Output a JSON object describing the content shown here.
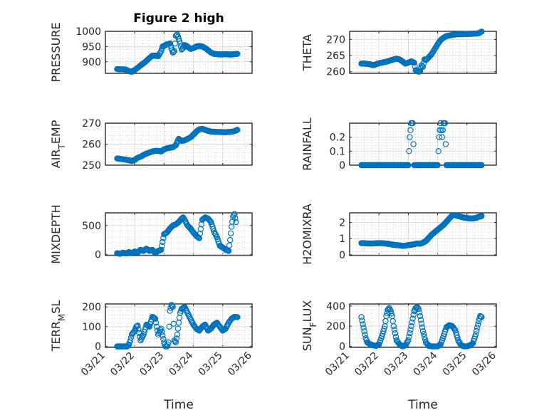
{
  "figure": {
    "title": "Figure 2 high",
    "xlabel": "Time"
  },
  "chart_data": [
    {
      "type": "scatter",
      "panel": "top-left",
      "title": "Figure 2 high",
      "ylabel": "PRESSURE",
      "ylabel_sub": "",
      "xlabel": "",
      "xlim": [
        0,
        5
      ],
      "x_ticks": [
        "03/21",
        "03/22",
        "03/23",
        "03/24",
        "03/25",
        "03/26"
      ],
      "x_tick_labels_shown": false,
      "ylim": [
        862,
        1000
      ],
      "y_ticks": [
        900,
        950,
        1000
      ],
      "series": [
        {
          "x": [
            0.4,
            0.5,
            0.6,
            0.7,
            0.75,
            0.8,
            0.9,
            1.0,
            1.1,
            1.2,
            1.3,
            1.4,
            1.5,
            1.6,
            1.7,
            1.8,
            1.9,
            1.95,
            2.0,
            2.05,
            2.1,
            2.15,
            2.2,
            2.25,
            2.3,
            2.35,
            2.4,
            2.45,
            2.5,
            2.55,
            2.6,
            2.65,
            2.7,
            2.8,
            2.9,
            3.0,
            3.1,
            3.2,
            3.3,
            3.4,
            3.5,
            3.6,
            3.7,
            3.8,
            3.9,
            4.0,
            4.1,
            4.2,
            4.3,
            4.4,
            4.5
          ],
          "y": [
            876,
            875,
            875,
            874,
            872,
            869,
            867,
            873,
            880,
            888,
            895,
            903,
            912,
            920,
            920,
            918,
            935,
            950,
            952,
            955,
            957,
            958,
            960,
            945,
            930,
            935,
            985,
            990,
            975,
            960,
            940,
            945,
            955,
            950,
            942,
            945,
            950,
            952,
            950,
            945,
            938,
            930,
            926,
            925,
            924,
            924,
            925,
            924,
            924,
            925,
            926
          ]
        }
      ]
    },
    {
      "type": "scatter",
      "panel": "top-right",
      "ylabel": "THETA",
      "ylabel_sub": "",
      "xlabel": "",
      "xlim": [
        0,
        5
      ],
      "x_ticks": [
        "03/21",
        "03/22",
        "03/23",
        "03/24",
        "03/25",
        "03/26"
      ],
      "x_tick_labels_shown": false,
      "ylim": [
        259.5,
        272.5
      ],
      "y_ticks": [
        260,
        265,
        270
      ],
      "series": [
        {
          "x": [
            0.4,
            0.5,
            0.6,
            0.7,
            0.8,
            0.9,
            1.0,
            1.1,
            1.2,
            1.3,
            1.4,
            1.5,
            1.6,
            1.7,
            1.8,
            1.9,
            2.0,
            2.1,
            2.2,
            2.25,
            2.3,
            2.35,
            2.4,
            2.45,
            2.5,
            2.55,
            2.6,
            2.65,
            2.7,
            2.8,
            2.9,
            3.0,
            3.1,
            3.2,
            3.3,
            3.4,
            3.5,
            3.6,
            3.7,
            3.8,
            3.9,
            4.0,
            4.1,
            4.2,
            4.3,
            4.4,
            4.5
          ],
          "y": [
            262.5,
            262.5,
            262.4,
            262.3,
            262.0,
            262.3,
            262.6,
            262.8,
            263.0,
            263.2,
            263.5,
            263.8,
            264.0,
            263.8,
            263.2,
            262.5,
            262.8,
            263.2,
            262.8,
            260.5,
            260.2,
            260.0,
            260.1,
            262.0,
            261.5,
            263.8,
            263.6,
            264.0,
            264.5,
            265.5,
            267.0,
            268.5,
            269.8,
            270.5,
            271.0,
            271.2,
            271.4,
            271.5,
            271.6,
            271.6,
            271.6,
            271.7,
            271.7,
            271.8,
            271.8,
            271.9,
            272.4
          ]
        }
      ]
    },
    {
      "type": "scatter",
      "panel": "second-left",
      "ylabel": "AIR",
      "ylabel_sub": "T",
      "ylabel_rest": "EMP",
      "xlabel": "",
      "xlim": [
        0,
        5
      ],
      "x_ticks": [
        "03/21",
        "03/22",
        "03/23",
        "03/24",
        "03/25",
        "03/26"
      ],
      "x_tick_labels_shown": false,
      "ylim": [
        250,
        270
      ],
      "y_ticks": [
        250,
        260,
        270
      ],
      "series": [
        {
          "x": [
            0.4,
            0.5,
            0.6,
            0.7,
            0.8,
            0.9,
            1.0,
            1.1,
            1.2,
            1.3,
            1.4,
            1.5,
            1.6,
            1.7,
            1.8,
            1.9,
            2.0,
            2.1,
            2.2,
            2.3,
            2.4,
            2.5,
            2.6,
            2.7,
            2.8,
            2.9,
            3.0,
            3.1,
            3.2,
            3.3,
            3.4,
            3.5,
            3.6,
            3.7,
            3.8,
            3.9,
            4.0,
            4.1,
            4.2,
            4.3,
            4.4,
            4.5
          ],
          "y": [
            253.2,
            253.0,
            252.8,
            252.6,
            252.3,
            252.0,
            252.5,
            253.5,
            254.0,
            254.8,
            255.5,
            256.0,
            256.5,
            256.8,
            256.8,
            256.5,
            257.5,
            258.0,
            258.3,
            258.5,
            259.5,
            262.5,
            261.5,
            261.8,
            262.5,
            263.2,
            264.5,
            266.0,
            267.0,
            267.3,
            266.8,
            266.3,
            266.0,
            265.9,
            265.8,
            265.8,
            265.7,
            265.7,
            265.8,
            265.9,
            266.2,
            266.8
          ]
        }
      ]
    },
    {
      "type": "scatter",
      "panel": "second-right",
      "ylabel": "RAINFALL",
      "ylabel_sub": "",
      "xlabel": "",
      "xlim": [
        0,
        5
      ],
      "x_ticks": [
        "03/21",
        "03/22",
        "03/23",
        "03/24",
        "03/25",
        "03/26"
      ],
      "x_tick_labels_shown": false,
      "ylim": [
        0,
        0.3
      ],
      "y_ticks": [
        0,
        0.1,
        0.2
      ],
      "series": [
        {
          "x": [
            0.4,
            0.6,
            0.8,
            1.0,
            1.2,
            1.4,
            1.6,
            1.8,
            1.9,
            2.0,
            2.05,
            2.1,
            2.15,
            2.2,
            2.4,
            2.6,
            2.8,
            3.0,
            3.05,
            3.1,
            3.15,
            3.2,
            3.25,
            3.3,
            3.4,
            3.6,
            3.8,
            4.0,
            4.2,
            4.4,
            4.5
          ],
          "y": [
            0,
            0,
            0,
            0,
            0,
            0,
            0,
            0,
            0,
            0,
            0.2,
            0.3,
            0.3,
            0,
            0,
            0,
            0,
            0,
            0.2,
            0.3,
            0.2,
            0.3,
            0.3,
            0,
            0,
            0,
            0,
            0,
            0,
            0,
            0
          ]
        }
      ]
    },
    {
      "type": "scatter",
      "panel": "third-left",
      "ylabel": "MIXDEPTH",
      "ylabel_sub": "",
      "xlabel": "",
      "xlim": [
        0,
        5
      ],
      "x_ticks": [
        "03/21",
        "03/22",
        "03/23",
        "03/24",
        "03/25",
        "03/26"
      ],
      "x_tick_labels_shown": false,
      "ylim": [
        -20,
        720
      ],
      "y_ticks": [
        0,
        500
      ],
      "series": [
        {
          "x": [
            0.4,
            0.5,
            0.6,
            0.7,
            0.8,
            0.9,
            1.0,
            1.1,
            1.2,
            1.3,
            1.4,
            1.5,
            1.6,
            1.7,
            1.8,
            1.9,
            2.0,
            2.1,
            2.2,
            2.3,
            2.4,
            2.5,
            2.6,
            2.65,
            2.7,
            2.8,
            2.9,
            3.0,
            3.1,
            3.2,
            3.3,
            3.4,
            3.5,
            3.6,
            3.7,
            3.8,
            3.9,
            4.0,
            4.1,
            4.2,
            4.25,
            4.3,
            4.35,
            4.4,
            4.45
          ],
          "y": [
            20,
            10,
            30,
            15,
            40,
            20,
            50,
            30,
            80,
            60,
            100,
            60,
            80,
            20,
            60,
            80,
            350,
            380,
            450,
            500,
            520,
            560,
            620,
            640,
            600,
            500,
            450,
            380,
            320,
            280,
            600,
            640,
            620,
            560,
            400,
            300,
            150,
            120,
            80,
            60,
            250,
            480,
            650,
            700,
            560
          ]
        }
      ]
    },
    {
      "type": "scatter",
      "panel": "third-right",
      "ylabel": "H2OMIXRA",
      "ylabel_sub": "",
      "xlabel": "",
      "xlim": [
        0,
        5
      ],
      "x_ticks": [
        "03/21",
        "03/22",
        "03/23",
        "03/24",
        "03/25",
        "03/26"
      ],
      "x_tick_labels_shown": false,
      "ylim": [
        -0.05,
        2.6
      ],
      "y_ticks": [
        0,
        1,
        2
      ],
      "series": [
        {
          "x": [
            0.4,
            0.5,
            0.6,
            0.7,
            0.8,
            0.9,
            1.0,
            1.1,
            1.2,
            1.3,
            1.4,
            1.5,
            1.6,
            1.7,
            1.8,
            1.9,
            2.0,
            2.1,
            2.2,
            2.3,
            2.4,
            2.5,
            2.6,
            2.7,
            2.8,
            2.9,
            3.0,
            3.1,
            3.2,
            3.3,
            3.4,
            3.5,
            3.6,
            3.7,
            3.8,
            3.9,
            4.0,
            4.1,
            4.2,
            4.3,
            4.4,
            4.5
          ],
          "y": [
            0.72,
            0.72,
            0.7,
            0.7,
            0.7,
            0.71,
            0.72,
            0.72,
            0.7,
            0.68,
            0.65,
            0.62,
            0.6,
            0.58,
            0.55,
            0.56,
            0.6,
            0.62,
            0.65,
            0.7,
            0.68,
            0.75,
            0.85,
            1.05,
            1.25,
            1.4,
            1.55,
            1.7,
            1.85,
            2.05,
            2.25,
            2.45,
            2.45,
            2.4,
            2.35,
            2.3,
            2.28,
            2.25,
            2.25,
            2.28,
            2.35,
            2.4
          ]
        }
      ]
    },
    {
      "type": "scatter",
      "panel": "bottom-left",
      "ylabel": "TERR",
      "ylabel_sub": "M",
      "ylabel_rest": "SL",
      "xlabel": "Time",
      "xlim": [
        0,
        5
      ],
      "x_ticks": [
        "03/21",
        "03/22",
        "03/23",
        "03/24",
        "03/25",
        "03/26"
      ],
      "x_tick_labels_shown": true,
      "ylim": [
        -5,
        215
      ],
      "y_ticks": [
        0,
        100,
        200
      ],
      "series": [
        {
          "x": [
            0.4,
            0.5,
            0.6,
            0.7,
            0.75,
            0.8,
            0.85,
            0.9,
            1.0,
            1.05,
            1.1,
            1.2,
            1.3,
            1.4,
            1.5,
            1.6,
            1.7,
            1.8,
            1.9,
            2.0,
            2.05,
            2.1,
            2.15,
            2.2,
            2.25,
            2.3,
            2.35,
            2.4,
            2.45,
            2.5,
            2.55,
            2.6,
            2.7,
            2.8,
            2.9,
            3.0,
            3.1,
            3.2,
            3.3,
            3.4,
            3.5,
            3.6,
            3.7,
            3.8,
            3.9,
            4.0,
            4.1,
            4.2,
            4.3,
            4.4,
            4.5
          ],
          "y": [
            0,
            0,
            0,
            0,
            0,
            10,
            30,
            60,
            80,
            100,
            105,
            30,
            60,
            110,
            100,
            150,
            140,
            60,
            90,
            20,
            0,
            0,
            20,
            180,
            210,
            200,
            30,
            20,
            60,
            120,
            170,
            190,
            200,
            170,
            140,
            110,
            90,
            80,
            100,
            110,
            80,
            90,
            110,
            120,
            100,
            80,
            90,
            120,
            140,
            150,
            148
          ]
        }
      ]
    },
    {
      "type": "scatter",
      "panel": "bottom-right",
      "ylabel": "SUN",
      "ylabel_sub": "F",
      "ylabel_rest": "LUX",
      "xlabel": "Time",
      "xlim": [
        0,
        5
      ],
      "x_ticks": [
        "03/21",
        "03/22",
        "03/23",
        "03/24",
        "03/25",
        "03/26"
      ],
      "x_tick_labels_shown": true,
      "ylim": [
        -10,
        420
      ],
      "y_ticks": [
        0,
        200,
        400
      ],
      "series": [
        {
          "x": [
            0.4,
            0.45,
            0.5,
            0.55,
            0.6,
            0.7,
            0.8,
            0.9,
            1.0,
            1.1,
            1.2,
            1.25,
            1.3,
            1.35,
            1.4,
            1.45,
            1.5,
            1.6,
            1.7,
            1.8,
            1.9,
            2.0,
            2.1,
            2.2,
            2.25,
            2.3,
            2.35,
            2.4,
            2.5,
            2.6,
            2.7,
            2.8,
            2.9,
            3.0,
            3.1,
            3.2,
            3.3,
            3.4,
            3.5,
            3.6,
            3.7,
            3.8,
            3.9,
            4.0,
            4.1,
            4.2,
            4.3,
            4.4,
            4.45,
            4.5
          ],
          "y": [
            290,
            220,
            150,
            80,
            40,
            20,
            10,
            5,
            20,
            100,
            200,
            300,
            360,
            380,
            350,
            300,
            200,
            60,
            20,
            0,
            10,
            60,
            200,
            350,
            380,
            390,
            370,
            300,
            150,
            40,
            5,
            0,
            0,
            0,
            20,
            100,
            190,
            210,
            200,
            160,
            60,
            10,
            0,
            0,
            10,
            30,
            120,
            250,
            300,
            290
          ]
        }
      ]
    }
  ]
}
